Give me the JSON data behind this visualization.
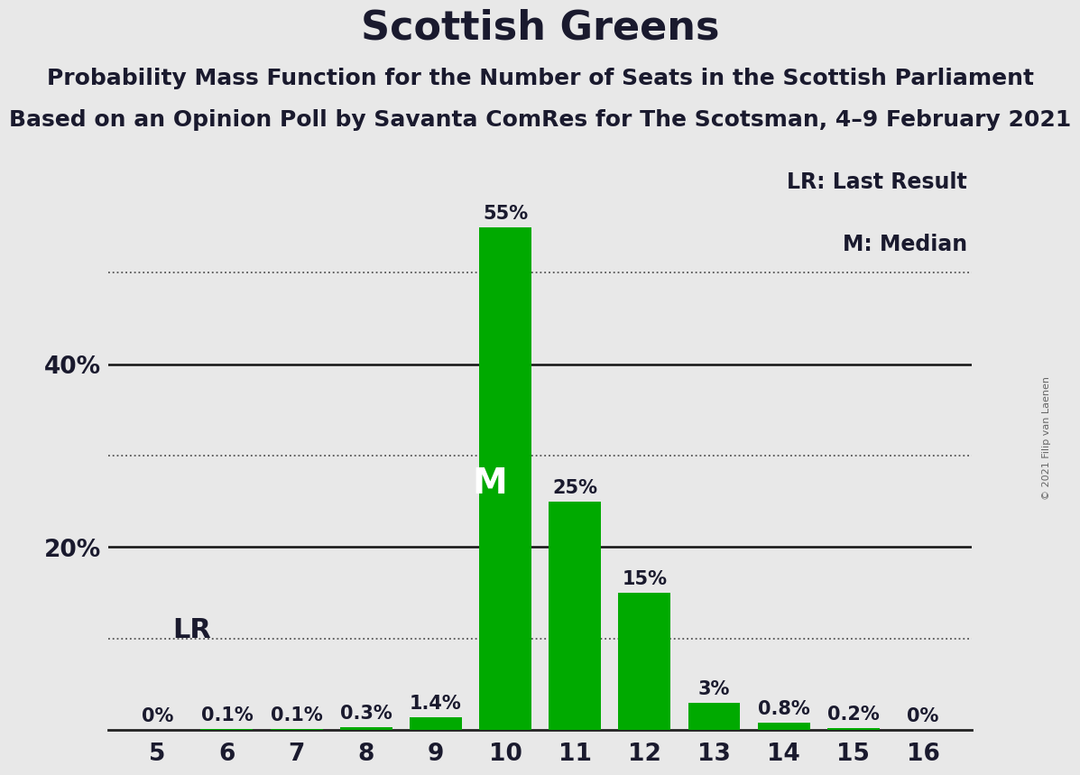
{
  "title": "Scottish Greens",
  "subtitle1": "Probability Mass Function for the Number of Seats in the Scottish Parliament",
  "subtitle2": "Based on an Opinion Poll by Savanta ComRes for The Scotsman, 4–9 February 2021",
  "copyright": "© 2021 Filip van Laenen",
  "legend_lr": "LR: Last Result",
  "legend_m": "M: Median",
  "seats": [
    5,
    6,
    7,
    8,
    9,
    10,
    11,
    12,
    13,
    14,
    15,
    16
  ],
  "probabilities": [
    0.0,
    0.1,
    0.1,
    0.3,
    1.4,
    55.0,
    25.0,
    15.0,
    3.0,
    0.8,
    0.2,
    0.0
  ],
  "bar_color": "#00aa00",
  "median_seat": 10,
  "lr_seat": 6,
  "labels": [
    "0%",
    "0.1%",
    "0.1%",
    "0.3%",
    "1.4%",
    "55%",
    "25%",
    "15%",
    "3%",
    "0.8%",
    "0.2%",
    "0%"
  ],
  "dotted_yticks": [
    10,
    30,
    50
  ],
  "solid_yticks": [
    20,
    40
  ],
  "solid_ytick_labels": [
    "20%",
    "40%"
  ],
  "background_color": "#e8e8e8",
  "ylim": [
    0,
    62
  ],
  "title_fontsize": 32,
  "subtitle_fontsize": 18,
  "bar_width": 0.75
}
